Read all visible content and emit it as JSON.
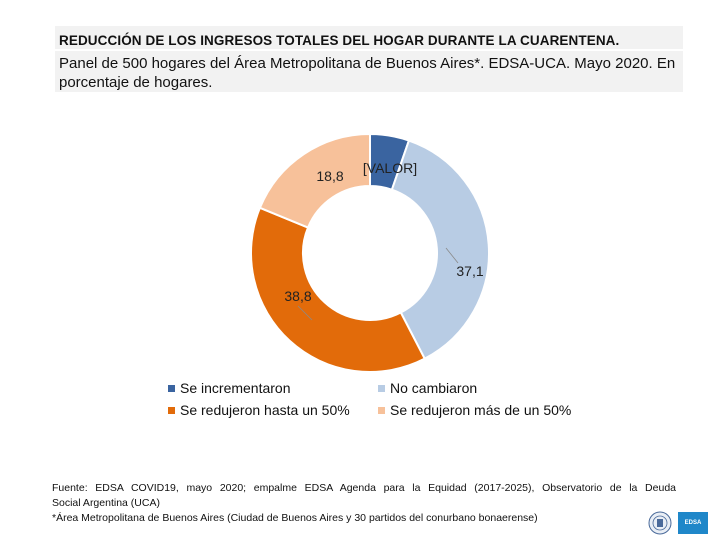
{
  "header": {
    "title": "REDUCCIÓN DE LOS INGRESOS TOTALES DEL HOGAR DURANTE LA CUARENTENA.",
    "subtitle": "Panel de 500 hogares del Área Metropolitana de Buenos Aires*. EDSA-UCA. Mayo 2020. En porcentaje de hogares."
  },
  "chart_data": {
    "type": "pie",
    "variant": "donut",
    "title": "REDUCCIÓN DE LOS INGRESOS TOTALES DEL HOGAR DURANTE LA CUARENTENA.",
    "categories": [
      "Se incrementaron",
      "No cambiaron",
      "Se redujeron hasta un 50%",
      "Se redujeron más de un 50%"
    ],
    "values": [
      5.3,
      37.1,
      38.8,
      18.8
    ],
    "labels": [
      "[VALOR]",
      "37,1",
      "38,8",
      "18,8"
    ],
    "colors": [
      "#3a64a0",
      "#b8cce4",
      "#e26b0a",
      "#f7c19a"
    ],
    "legend_position": "bottom"
  },
  "legend": {
    "items": [
      {
        "label": "Se incrementaron",
        "color": "#3a64a0"
      },
      {
        "label": "No cambiaron",
        "color": "#b8cce4"
      },
      {
        "label": "Se redujeron hasta un 50%",
        "color": "#e26b0a"
      },
      {
        "label": "Se redujeron más de un 50%",
        "color": "#f7c19a"
      }
    ]
  },
  "source": {
    "line1": "Fuente: EDSA COVID19, mayo 2020; empalme EDSA Agenda para la Equidad (2017-2025), Observatorio de la Deuda",
    "line2": "Social Argentina (UCA)",
    "line3": "*Área Metropolitana de Buenos Aires (Ciudad de Buenos Aires y 30 partidos del conurbano bonaerense)"
  },
  "logos": {
    "edsa_text": "EDSA"
  }
}
